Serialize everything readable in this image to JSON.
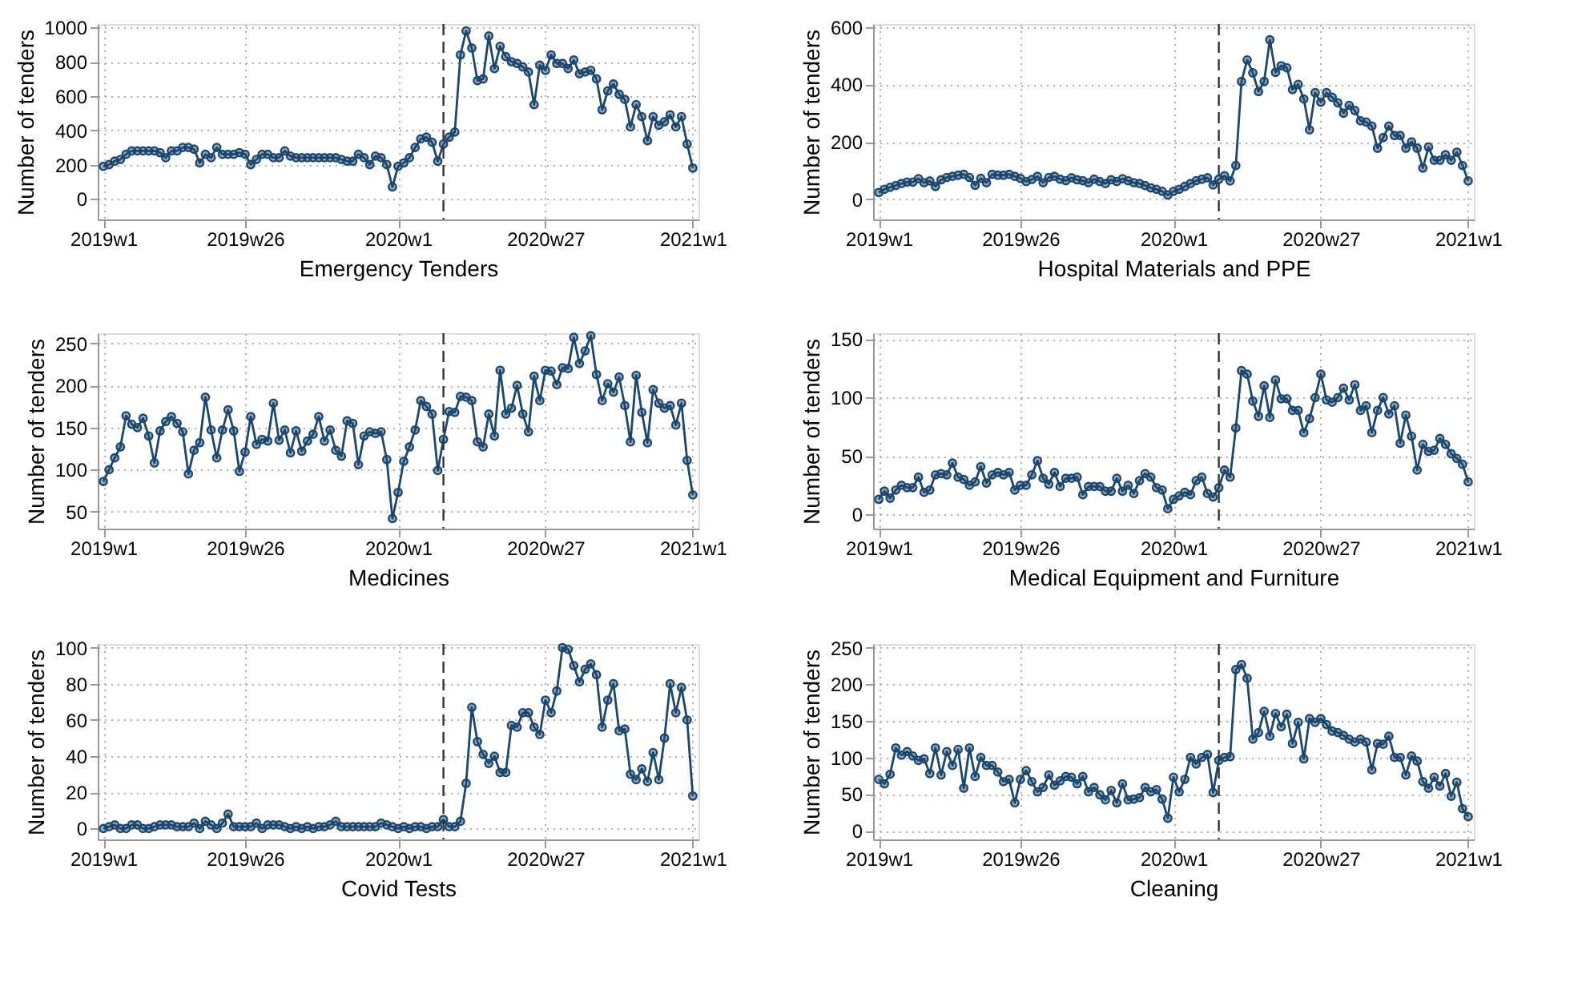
{
  "chart_data": [
    {
      "type": "line",
      "xlabel": "Emergency Tenders",
      "ylabel": "Number of tenders",
      "grid": true,
      "marker": "circle",
      "line_style": "solid",
      "ylim": [
        -120,
        1020
      ],
      "categories": [
        "2019w1",
        null,
        null,
        null,
        null,
        null,
        null,
        null,
        null,
        null,
        null,
        null,
        null,
        null,
        null,
        null,
        null,
        null,
        null,
        null,
        null,
        null,
        null,
        null,
        null,
        "2019w26",
        null,
        null,
        null,
        null,
        null,
        null,
        null,
        null,
        null,
        null,
        null,
        null,
        null,
        null,
        null,
        null,
        null,
        null,
        null,
        null,
        null,
        null,
        null,
        null,
        null,
        null,
        "2020w1",
        null,
        null,
        null,
        null,
        null,
        null,
        null,
        null,
        null,
        null,
        null,
        null,
        null,
        null,
        null,
        null,
        null,
        null,
        null,
        null,
        null,
        null,
        null,
        null,
        null,
        "2020w27",
        null,
        null,
        null,
        null,
        null,
        null,
        null,
        null,
        null,
        null,
        null,
        null,
        null,
        null,
        null,
        null,
        null,
        null,
        null,
        null,
        null,
        null,
        null,
        null,
        null,
        "2021w1"
      ],
      "yticks": [
        0,
        200,
        400,
        600,
        800,
        1000
      ],
      "series": [
        {
          "color": "#1a476f",
          "values": [
            190,
            200,
            220,
            230,
            260,
            280,
            280,
            280,
            280,
            280,
            270,
            240,
            280,
            280,
            300,
            300,
            290,
            210,
            260,
            240,
            300,
            260,
            260,
            260,
            270,
            260,
            200,
            230,
            260,
            260,
            240,
            240,
            280,
            250,
            240,
            240,
            240,
            240,
            240,
            240,
            240,
            240,
            230,
            220,
            220,
            260,
            240,
            200,
            250,
            240,
            200,
            70,
            190,
            210,
            240,
            300,
            350,
            360,
            330,
            220,
            320,
            360,
            390,
            840,
            980,
            880,
            690,
            700,
            950,
            760,
            890,
            830,
            800,
            790,
            770,
            740,
            550,
            780,
            750,
            840,
            790,
            790,
            760,
            810,
            730,
            740,
            750,
            700,
            520,
            630,
            670,
            610,
            580,
            420,
            550,
            480,
            340,
            480,
            430,
            450,
            490,
            420,
            480,
            320,
            180
          ]
        }
      ]
    },
    {
      "type": "line",
      "xlabel": "Hospital Materials and PPE",
      "ylabel": "Number of tenders",
      "grid": true,
      "marker": "circle",
      "line_style": "solid",
      "ylim": [
        -70,
        610
      ],
      "categories": [
        "2019w1",
        null,
        null,
        null,
        null,
        null,
        null,
        null,
        null,
        null,
        null,
        null,
        null,
        null,
        null,
        null,
        null,
        null,
        null,
        null,
        null,
        null,
        null,
        null,
        null,
        "2019w26",
        null,
        null,
        null,
        null,
        null,
        null,
        null,
        null,
        null,
        null,
        null,
        null,
        null,
        null,
        null,
        null,
        null,
        null,
        null,
        null,
        null,
        null,
        null,
        null,
        null,
        null,
        "2020w1",
        null,
        null,
        null,
        null,
        null,
        null,
        null,
        null,
        null,
        null,
        null,
        null,
        null,
        null,
        null,
        null,
        null,
        null,
        null,
        null,
        null,
        null,
        null,
        null,
        null,
        "2020w27",
        null,
        null,
        null,
        null,
        null,
        null,
        null,
        null,
        null,
        null,
        null,
        null,
        null,
        null,
        null,
        null,
        null,
        null,
        null,
        null,
        null,
        null,
        null,
        null,
        null,
        "2021w1"
      ],
      "yticks": [
        0,
        200,
        400,
        600
      ],
      "series": [
        {
          "color": "#1a476f",
          "values": [
            24,
            35,
            42,
            48,
            55,
            60,
            60,
            72,
            58,
            64,
            45,
            68,
            76,
            80,
            84,
            87,
            76,
            49,
            73,
            58,
            87,
            84,
            84,
            87,
            80,
            73,
            62,
            69,
            80,
            58,
            76,
            80,
            70,
            65,
            75,
            68,
            65,
            58,
            70,
            62,
            55,
            68,
            62,
            72,
            65,
            58,
            55,
            48,
            40,
            35,
            28,
            15,
            28,
            35,
            45,
            55,
            65,
            70,
            75,
            50,
            70,
            82,
            64,
            118,
            410,
            485,
            440,
            375,
            410,
            555,
            442,
            465,
            458,
            382,
            400,
            349,
            242,
            371,
            338,
            371,
            355,
            336,
            300,
            327,
            309,
            273,
            269,
            255,
            178,
            215,
            255,
            222,
            222,
            178,
            200,
            178,
            109,
            182,
            136,
            136,
            155,
            136,
            164,
            118,
            64
          ]
        }
      ]
    },
    {
      "type": "line",
      "xlabel": "Medicines",
      "ylabel": "Number of tenders",
      "grid": true,
      "marker": "circle",
      "line_style": "solid",
      "ylim": [
        30,
        262
      ],
      "categories": [
        "2019w1",
        null,
        null,
        null,
        null,
        null,
        null,
        null,
        null,
        null,
        null,
        null,
        null,
        null,
        null,
        null,
        null,
        null,
        null,
        null,
        null,
        null,
        null,
        null,
        null,
        "2019w26",
        null,
        null,
        null,
        null,
        null,
        null,
        null,
        null,
        null,
        null,
        null,
        null,
        null,
        null,
        null,
        null,
        null,
        null,
        null,
        null,
        null,
        null,
        null,
        null,
        null,
        null,
        "2020w1",
        null,
        null,
        null,
        null,
        null,
        null,
        null,
        null,
        null,
        null,
        null,
        null,
        null,
        null,
        null,
        null,
        null,
        null,
        null,
        null,
        null,
        null,
        null,
        null,
        null,
        "2020w27",
        null,
        null,
        null,
        null,
        null,
        null,
        null,
        null,
        null,
        null,
        null,
        null,
        null,
        null,
        null,
        null,
        null,
        null,
        null,
        null,
        null,
        null,
        null,
        null,
        null,
        "2021w1"
      ],
      "yticks": [
        50,
        100,
        150,
        200,
        250
      ],
      "series": [
        {
          "color": "#1a476f",
          "values": [
            86,
            100,
            114,
            127,
            164,
            154,
            150,
            161,
            140,
            108,
            146,
            157,
            163,
            155,
            145,
            95,
            123,
            132,
            186,
            147,
            114,
            147,
            171,
            146,
            98,
            121,
            163,
            130,
            136,
            134,
            179,
            135,
            147,
            120,
            146,
            122,
            134,
            142,
            163,
            134,
            147,
            123,
            116,
            158,
            155,
            106,
            140,
            145,
            143,
            145,
            112,
            42,
            73,
            110,
            127,
            147,
            182,
            175,
            166,
            99,
            136,
            169,
            168,
            187,
            186,
            182,
            133,
            127,
            166,
            140,
            218,
            166,
            173,
            200,
            166,
            145,
            211,
            182,
            218,
            217,
            201,
            221,
            220,
            257,
            226,
            241,
            259,
            213,
            182,
            202,
            192,
            210,
            176,
            133,
            212,
            168,
            132,
            195,
            179,
            173,
            176,
            153,
            179,
            111,
            70
          ]
        }
      ]
    },
    {
      "type": "line",
      "xlabel": "Medical Equipment and Furniture",
      "ylabel": "Number of tenders",
      "grid": true,
      "marker": "circle",
      "line_style": "solid",
      "ylim": [
        -12,
        155
      ],
      "categories": [
        "2019w1",
        null,
        null,
        null,
        null,
        null,
        null,
        null,
        null,
        null,
        null,
        null,
        null,
        null,
        null,
        null,
        null,
        null,
        null,
        null,
        null,
        null,
        null,
        null,
        null,
        "2019w26",
        null,
        null,
        null,
        null,
        null,
        null,
        null,
        null,
        null,
        null,
        null,
        null,
        null,
        null,
        null,
        null,
        null,
        null,
        null,
        null,
        null,
        null,
        null,
        null,
        null,
        null,
        "2020w1",
        null,
        null,
        null,
        null,
        null,
        null,
        null,
        null,
        null,
        null,
        null,
        null,
        null,
        null,
        null,
        null,
        null,
        null,
        null,
        null,
        null,
        null,
        null,
        null,
        null,
        "2020w27",
        null,
        null,
        null,
        null,
        null,
        null,
        null,
        null,
        null,
        null,
        null,
        null,
        null,
        null,
        null,
        null,
        null,
        null,
        null,
        null,
        null,
        null,
        null,
        null,
        null,
        "2021w1"
      ],
      "yticks": [
        0,
        50,
        100,
        150
      ],
      "series": [
        {
          "color": "#1a476f",
          "values": [
            13,
            20,
            14,
            21,
            25,
            23,
            23,
            32,
            19,
            21,
            34,
            35,
            34,
            44,
            32,
            30,
            25,
            28,
            41,
            27,
            34,
            36,
            34,
            36,
            21,
            25,
            25,
            34,
            46,
            31,
            26,
            36,
            24,
            31,
            31,
            32,
            17,
            24,
            24,
            24,
            20,
            20,
            31,
            20,
            25,
            18,
            29,
            35,
            32,
            23,
            21,
            5,
            13,
            16,
            19,
            17,
            29,
            32,
            18,
            15,
            23,
            38,
            32,
            74,
            123,
            120,
            97,
            84,
            110,
            83,
            115,
            99,
            99,
            89,
            89,
            70,
            82,
            100,
            120,
            98,
            96,
            100,
            108,
            98,
            111,
            89,
            93,
            70,
            89,
            100,
            86,
            93,
            61,
            85,
            67,
            38,
            60,
            54,
            55,
            65,
            60,
            52,
            48,
            43,
            28
          ]
        }
      ]
    },
    {
      "type": "line",
      "xlabel": "Covid Tests",
      "ylabel": "Number of tenders",
      "grid": true,
      "marker": "circle",
      "line_style": "solid",
      "ylim": [
        -6,
        102
      ],
      "categories": [
        "2019w1",
        null,
        null,
        null,
        null,
        null,
        null,
        null,
        null,
        null,
        null,
        null,
        null,
        null,
        null,
        null,
        null,
        null,
        null,
        null,
        null,
        null,
        null,
        null,
        null,
        "2019w26",
        null,
        null,
        null,
        null,
        null,
        null,
        null,
        null,
        null,
        null,
        null,
        null,
        null,
        null,
        null,
        null,
        null,
        null,
        null,
        null,
        null,
        null,
        null,
        null,
        null,
        null,
        "2020w1",
        null,
        null,
        null,
        null,
        null,
        null,
        null,
        null,
        null,
        null,
        null,
        null,
        null,
        null,
        null,
        null,
        null,
        null,
        null,
        null,
        null,
        null,
        null,
        null,
        null,
        "2020w27",
        null,
        null,
        null,
        null,
        null,
        null,
        null,
        null,
        null,
        null,
        null,
        null,
        null,
        null,
        null,
        null,
        null,
        null,
        null,
        null,
        null,
        null,
        null,
        null,
        null,
        "2021w1"
      ],
      "yticks": [
        0,
        20,
        40,
        60,
        80,
        100
      ],
      "series": [
        {
          "color": "#1a476f",
          "values": [
            0,
            1,
            2,
            0,
            0,
            2,
            2,
            0,
            0,
            1,
            2,
            2,
            2,
            1,
            1,
            1,
            3,
            0,
            4,
            2,
            0,
            3,
            8,
            1,
            1,
            1,
            1,
            3,
            0,
            2,
            2,
            2,
            1,
            0,
            1,
            0,
            1,
            0,
            1,
            1,
            2,
            4,
            1,
            1,
            1,
            1,
            1,
            1,
            1,
            3,
            2,
            1,
            0,
            1,
            0,
            1,
            1,
            0,
            1,
            1,
            5,
            1,
            1,
            4,
            25,
            67,
            48,
            41,
            36,
            40,
            31,
            31,
            57,
            56,
            64,
            64,
            56,
            52,
            71,
            64,
            76,
            100,
            99,
            90,
            81,
            88,
            91,
            85,
            56,
            71,
            80,
            54,
            55,
            30,
            27,
            33,
            26,
            42,
            27,
            50,
            80,
            64,
            78,
            60,
            18
          ]
        }
      ]
    },
    {
      "type": "line",
      "xlabel": "Cleaning",
      "ylabel": "Number of tenders",
      "grid": true,
      "marker": "circle",
      "line_style": "solid",
      "ylim": [
        -12,
        255
      ],
      "categories": [
        "2019w1",
        null,
        null,
        null,
        null,
        null,
        null,
        null,
        null,
        null,
        null,
        null,
        null,
        null,
        null,
        null,
        null,
        null,
        null,
        null,
        null,
        null,
        null,
        null,
        null,
        "2019w26",
        null,
        null,
        null,
        null,
        null,
        null,
        null,
        null,
        null,
        null,
        null,
        null,
        null,
        null,
        null,
        null,
        null,
        null,
        null,
        null,
        null,
        null,
        null,
        null,
        null,
        null,
        "2020w1",
        null,
        null,
        null,
        null,
        null,
        null,
        null,
        null,
        null,
        null,
        null,
        null,
        null,
        null,
        null,
        null,
        null,
        null,
        null,
        null,
        null,
        null,
        null,
        null,
        null,
        "2020w27",
        null,
        null,
        null,
        null,
        null,
        null,
        null,
        null,
        null,
        null,
        null,
        null,
        null,
        null,
        null,
        null,
        null,
        null,
        null,
        null,
        null,
        null,
        null,
        null,
        null,
        "2021w1"
      ],
      "yticks": [
        0,
        50,
        100,
        150,
        200,
        250
      ],
      "series": [
        {
          "color": "#1a476f",
          "values": [
            70,
            64,
            77,
            113,
            103,
            108,
            102,
            96,
            98,
            78,
            113,
            76,
            108,
            89,
            111,
            58,
            113,
            74,
            100,
            89,
            89,
            80,
            67,
            70,
            38,
            70,
            82,
            67,
            53,
            59,
            76,
            62,
            68,
            74,
            73,
            64,
            74,
            53,
            59,
            49,
            42,
            55,
            38,
            64,
            42,
            43,
            45,
            59,
            53,
            56,
            43,
            17,
            73,
            53,
            70,
            100,
            91,
            100,
            104,
            52,
            96,
            100,
            101,
            220,
            227,
            208,
            125,
            134,
            163,
            129,
            160,
            142,
            159,
            119,
            148,
            98,
            153,
            148,
            153,
            145,
            136,
            134,
            130,
            125,
            121,
            125,
            121,
            83,
            119,
            118,
            129,
            100,
            100,
            76,
            102,
            95,
            67,
            58,
            73,
            61,
            78,
            47,
            66,
            30,
            19
          ]
        }
      ]
    }
  ]
}
